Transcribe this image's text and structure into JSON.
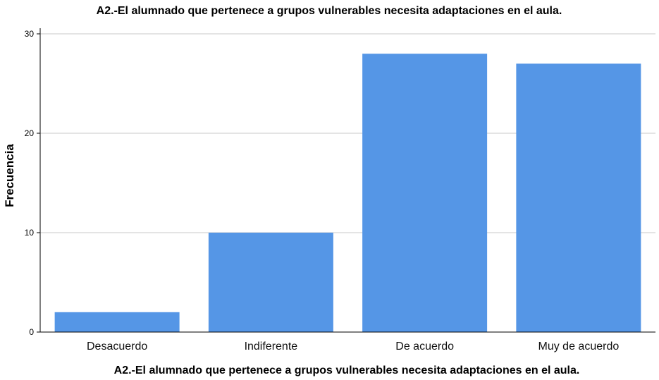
{
  "chart_data": {
    "type": "bar",
    "title": "A2.-El alumnado que pertenece a grupos vulnerables necesita adaptaciones en el aula.",
    "xlabel": "A2.-El alumnado que pertenece a grupos vulnerables necesita adaptaciones en el aula.",
    "ylabel": "Frecuencia",
    "categories": [
      "Desacuerdo",
      "Indiferente",
      "De acuerdo",
      "Muy de acuerdo"
    ],
    "values": [
      2,
      10,
      28,
      27
    ],
    "ylim": [
      0,
      30
    ],
    "yticks": [
      "0",
      "10",
      "20",
      "30"
    ],
    "grid": true,
    "bar_color": "#5596e6",
    "grid_color": "#c8c8c8"
  }
}
